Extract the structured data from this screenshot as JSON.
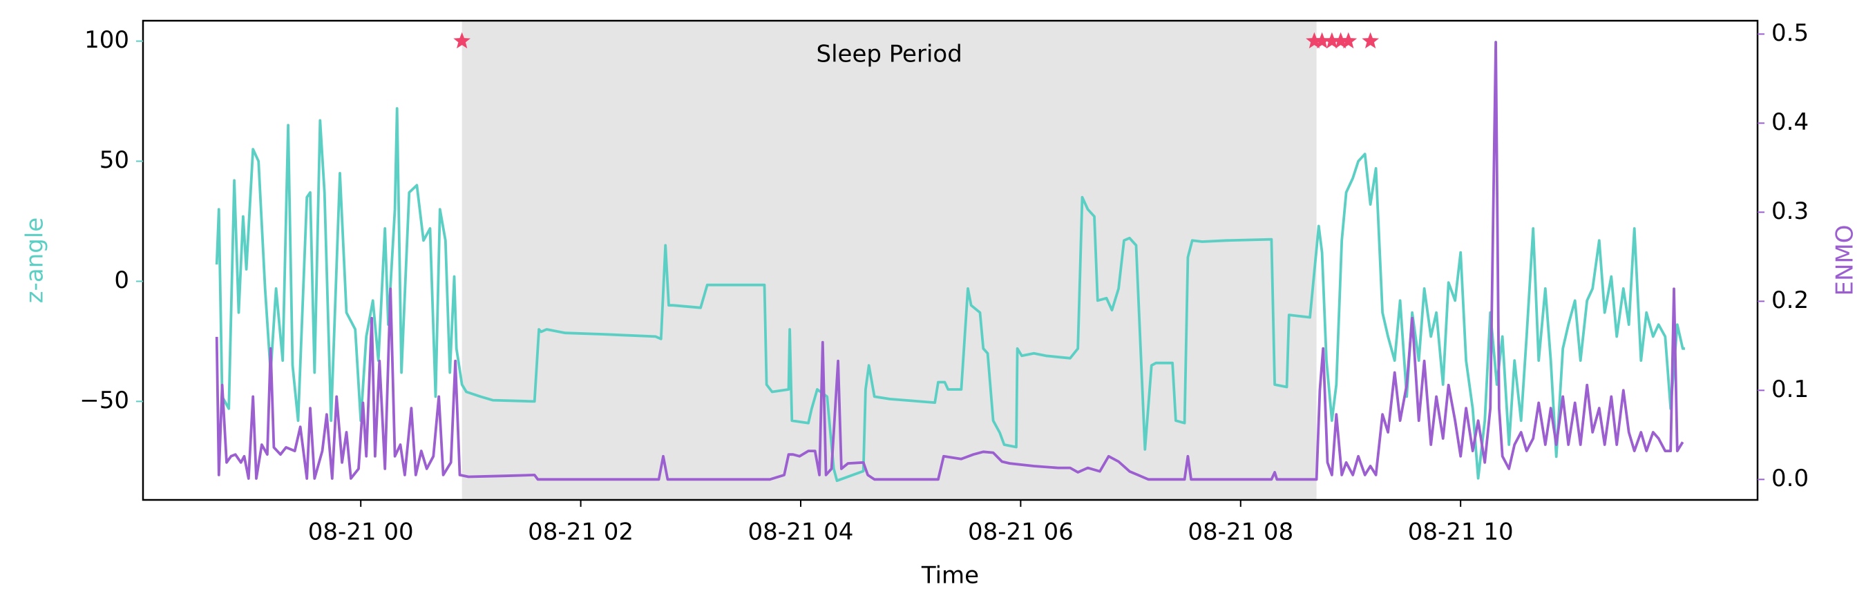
{
  "chart_data": {
    "type": "line",
    "x_label": "Time",
    "y_label": "z-angle",
    "y2_label": "ENMO",
    "xlim": [
      -1.98,
      12.7
    ],
    "ylim": [
      -91,
      108.5
    ],
    "y2lim": [
      -0.023,
      0.515
    ],
    "xticks": [
      {
        "value": 0,
        "label": "08-21 00"
      },
      {
        "value": 2,
        "label": "08-21 02"
      },
      {
        "value": 4,
        "label": "08-21 04"
      },
      {
        "value": 6,
        "label": "08-21 06"
      },
      {
        "value": 8,
        "label": "08-21 08"
      },
      {
        "value": 10,
        "label": "08-21 10"
      }
    ],
    "yticks": [
      {
        "value": -50,
        "label": "−50"
      },
      0,
      50,
      100
    ],
    "y2ticks": [
      {
        "value": 0,
        "label": "0.0"
      },
      0.1,
      0.2,
      0.3,
      0.4,
      0.5
    ],
    "span": {
      "label": "Sleep Period",
      "x": [
        0.92,
        8.69
      ],
      "color": "#e5e5e5"
    },
    "markers": {
      "color": "#f0436b",
      "x": [
        0.92,
        8.67,
        8.74,
        8.83,
        8.91,
        8.98,
        9.18
      ],
      "y": [
        100,
        100,
        100,
        100,
        100,
        100,
        100
      ]
    },
    "series": [
      {
        "name": "z-angle",
        "color": "#5ccfc5",
        "axis": "y",
        "x": [
          -1.31,
          -1.29,
          -1.26,
          -1.2,
          -1.15,
          -1.11,
          -1.07,
          -1.04,
          -0.98,
          -0.93,
          -0.87,
          -0.82,
          -0.77,
          -0.71,
          -0.66,
          -0.62,
          -0.57,
          -0.49,
          -0.46,
          -0.42,
          -0.37,
          -0.33,
          -0.27,
          -0.19,
          -0.13,
          -0.05,
          0,
          0.05,
          0.11,
          0.16,
          0.22,
          0.25,
          0.31,
          0.33,
          0.37,
          0.44,
          0.51,
          0.57,
          0.63,
          0.68,
          0.72,
          0.77,
          0.81,
          0.85,
          0.87,
          0.92,
          0.96,
          1.09,
          1.2,
          1.58,
          1.62,
          1.64,
          1.69,
          1.86,
          2.19,
          2.68,
          2.73,
          2.77,
          2.8,
          2.84,
          3.09,
          3.15,
          3.28,
          3.67,
          3.69,
          3.74,
          3.89,
          3.9,
          3.92,
          4.07,
          4.1,
          4.15,
          4.24,
          4.3,
          4.33,
          4.57,
          4.59,
          4.62,
          4.67,
          4.81,
          5.22,
          5.25,
          5.31,
          5.34,
          5.46,
          5.52,
          5.55,
          5.63,
          5.66,
          5.7,
          5.75,
          5.81,
          5.85,
          5.96,
          5.97,
          6.01,
          6.12,
          6.23,
          6.45,
          6.52,
          6.56,
          6.61,
          6.67,
          6.7,
          6.78,
          6.83,
          6.89,
          6.94,
          6.99,
          7.05,
          7.13,
          7.19,
          7.23,
          7.38,
          7.41,
          7.49,
          7.52,
          7.56,
          7.65,
          7.87,
          8.28,
          8.31,
          8.42,
          8.44,
          8.63,
          8.71,
          8.74,
          8.78,
          8.83,
          8.87,
          8.92,
          8.96,
          9.02,
          9.07,
          9.13,
          9.18,
          9.23,
          9.29,
          9.34,
          9.4,
          9.45,
          9.51,
          9.56,
          9.62,
          9.67,
          9.73,
          9.78,
          9.84,
          9.89,
          9.95,
          10.0,
          10.05,
          10.11,
          10.16,
          10.22,
          10.27,
          10.33,
          10.38,
          10.44,
          10.49,
          10.55,
          10.6,
          10.66,
          10.71,
          10.77,
          10.82,
          10.87,
          10.93,
          10.98,
          11.04,
          11.09,
          11.15,
          11.2,
          11.26,
          11.31,
          11.37,
          11.42,
          11.48,
          11.53,
          11.58,
          11.64,
          11.69,
          11.75,
          11.8,
          11.86,
          11.91,
          11.97,
          12.02,
          12.04
        ],
        "values": [
          7,
          30,
          -48,
          -53,
          42,
          -13,
          27,
          5,
          55,
          50,
          -3,
          -38,
          -3,
          -33,
          65,
          -35,
          -58,
          35,
          37,
          -38,
          67,
          37,
          -58,
          45,
          -13,
          -20,
          -58,
          -23,
          -8,
          -33,
          22,
          -18,
          30,
          72,
          -38,
          37,
          40,
          17,
          22,
          -48,
          30,
          17,
          -38,
          2,
          -28,
          -43,
          -46,
          -48,
          -49.5,
          -50,
          -20,
          -21,
          -20,
          -21.5,
          -22,
          -23,
          -24,
          15,
          -10,
          -10,
          -11,
          -1.5,
          -1.5,
          -1.5,
          -43,
          -46,
          -45,
          -20,
          -58,
          -59,
          -53,
          -45,
          -48,
          -78,
          -83,
          -79,
          -45,
          -35,
          -48,
          -49,
          -50.5,
          -42,
          -42,
          -45,
          -45,
          -3,
          -10,
          -13,
          -28,
          -30,
          -58,
          -63,
          -68,
          -69,
          -28,
          -31,
          -30,
          -31,
          -32,
          -28,
          35,
          30,
          27,
          -8,
          -7,
          -12,
          -3,
          17,
          18,
          15,
          -70,
          -35,
          -34,
          -34,
          -58,
          -59,
          10,
          17,
          16.5,
          17,
          17.5,
          -43,
          -44,
          -14,
          -15,
          23,
          12,
          -33,
          -58,
          -43,
          17,
          37,
          43,
          50,
          53,
          32,
          47,
          -13,
          -23,
          -33,
          -8,
          -48,
          -13,
          -33,
          -3,
          -23,
          -13,
          -43,
          -0.5,
          -8,
          12,
          -33,
          -53,
          -82,
          -58,
          -13,
          -43,
          -23,
          -68,
          -33,
          -58,
          -23,
          22,
          -33,
          -3,
          -33,
          -73,
          -28,
          -18,
          -8,
          -33,
          -8,
          -3,
          17,
          -13,
          2,
          -23,
          -3,
          -18,
          22,
          -33,
          -13,
          -23,
          -18,
          -23,
          -53,
          -18,
          -28,
          -28
        ]
      },
      {
        "name": "ENMO",
        "color": "#9b5fd0",
        "axis": "y2",
        "x": [
          -1.31,
          -1.29,
          -1.26,
          -1.22,
          -1.18,
          -1.14,
          -1.09,
          -1.06,
          -1.02,
          -0.98,
          -0.95,
          -0.9,
          -0.85,
          -0.82,
          -0.79,
          -0.73,
          -0.68,
          -0.6,
          -0.55,
          -0.49,
          -0.46,
          -0.42,
          -0.35,
          -0.31,
          -0.26,
          -0.22,
          -0.17,
          -0.13,
          -0.09,
          -0.02,
          0.02,
          0.05,
          0.1,
          0.13,
          0.17,
          0.22,
          0.27,
          0.31,
          0.36,
          0.4,
          0.46,
          0.5,
          0.55,
          0.6,
          0.66,
          0.71,
          0.75,
          0.82,
          0.86,
          0.9,
          0.98,
          1.31,
          1.58,
          1.61,
          2.71,
          2.75,
          2.79,
          3.72,
          3.85,
          3.89,
          3.93,
          3.99,
          4.07,
          4.13,
          4.17,
          4.2,
          4.23,
          4.28,
          4.34,
          4.37,
          4.43,
          4.57,
          4.61,
          4.67,
          5.25,
          5.3,
          5.46,
          5.57,
          5.66,
          5.75,
          5.83,
          5.9,
          6.12,
          6.34,
          6.45,
          6.52,
          6.61,
          6.72,
          6.8,
          6.89,
          6.99,
          7.16,
          7.49,
          7.52,
          7.55,
          8.28,
          8.31,
          8.33,
          8.69,
          8.72,
          8.75,
          8.79,
          8.83,
          8.87,
          8.92,
          8.96,
          9.02,
          9.07,
          9.13,
          9.18,
          9.23,
          9.29,
          9.34,
          9.4,
          9.45,
          9.51,
          9.56,
          9.62,
          9.67,
          9.73,
          9.78,
          9.84,
          9.89,
          9.95,
          10.0,
          10.05,
          10.11,
          10.16,
          10.22,
          10.27,
          10.32,
          10.35,
          10.38,
          10.44,
          10.49,
          10.55,
          10.6,
          10.66,
          10.71,
          10.77,
          10.82,
          10.87,
          10.93,
          10.98,
          11.04,
          11.09,
          11.15,
          11.2,
          11.26,
          11.31,
          11.37,
          11.42,
          11.48,
          11.53,
          11.58,
          11.64,
          11.69,
          11.75,
          11.8,
          11.86,
          11.91,
          11.94,
          11.97,
          12.02
        ],
        "values": [
          0.16,
          0.005,
          0.106,
          0.019,
          0.026,
          0.028,
          0.019,
          0.026,
          0.001,
          0.093,
          0.001,
          0.039,
          0.028,
          0.147,
          0.036,
          0.028,
          0.036,
          0.032,
          0.059,
          0.001,
          0.08,
          0.001,
          0.032,
          0.073,
          0.001,
          0.093,
          0.019,
          0.053,
          0.001,
          0.012,
          0.086,
          0.026,
          0.181,
          0.026,
          0.133,
          0.012,
          0.214,
          0.026,
          0.039,
          0.005,
          0.08,
          0.005,
          0.032,
          0.012,
          0.026,
          0.093,
          0.005,
          0.019,
          0.133,
          0.005,
          0.003,
          0.004,
          0.005,
          0,
          0,
          0.026,
          0,
          0,
          0.005,
          0.028,
          0.028,
          0.026,
          0.032,
          0.032,
          0.005,
          0.154,
          0.005,
          0.012,
          0.133,
          0.012,
          0.018,
          0.019,
          0.005,
          0,
          0,
          0.026,
          0.023,
          0.028,
          0.031,
          0.03,
          0.02,
          0.018,
          0.015,
          0.013,
          0.013,
          0.008,
          0.013,
          0.009,
          0.026,
          0.02,
          0.009,
          0,
          0,
          0.026,
          0,
          0,
          0.008,
          0,
          0,
          0.1,
          0.147,
          0.019,
          0.005,
          0.073,
          0.005,
          0.019,
          0.005,
          0.026,
          0.005,
          0.015,
          0.005,
          0.073,
          0.053,
          0.12,
          0.066,
          0.106,
          0.181,
          0.066,
          0.133,
          0.039,
          0.093,
          0.046,
          0.106,
          0.066,
          0.026,
          0.08,
          0.032,
          0.066,
          0.019,
          0.08,
          0.491,
          0.08,
          0.026,
          0.012,
          0.039,
          0.053,
          0.032,
          0.046,
          0.086,
          0.039,
          0.08,
          0.039,
          0.093,
          0.039,
          0.086,
          0.039,
          0.106,
          0.053,
          0.08,
          0.039,
          0.093,
          0.039,
          0.1,
          0.053,
          0.032,
          0.053,
          0.032,
          0.053,
          0.046,
          0.032,
          0.032,
          0.214,
          0.032,
          0.042
        ]
      }
    ]
  }
}
